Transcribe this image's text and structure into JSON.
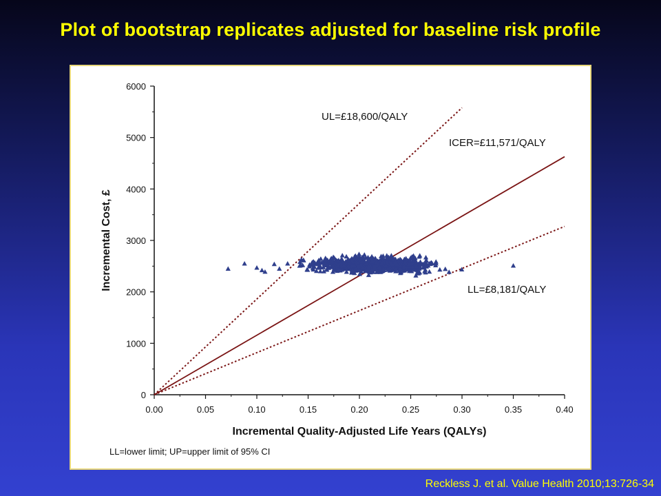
{
  "slide": {
    "title": "Plot of bootstrap replicates adjusted for baseline risk profile",
    "footnote": "LL=lower limit; UP=upper limit of 95% CI",
    "citation": "Reckless J. et al. Value Health 2010;13:726-34"
  },
  "colors": {
    "title": "#ffff00",
    "points": "#2f3f8c",
    "lines": "#7a1414"
  },
  "chart_data": {
    "type": "scatter",
    "xlabel": "Incremental Quality-Adjusted Life Years (QALYs)",
    "ylabel": "Incremental Cost, £",
    "xlim": [
      0,
      0.4
    ],
    "ylim": [
      0,
      6000
    ],
    "x_ticks": [
      "0.00",
      "0.05",
      "0.10",
      "0.15",
      "0.20",
      "0.25",
      "0.30",
      "0.35",
      "0.40"
    ],
    "y_ticks": [
      "0",
      "1000",
      "2000",
      "3000",
      "4000",
      "5000",
      "6000"
    ],
    "grid": false,
    "marker": "triangle",
    "point_cloud": {
      "x_range": [
        0.07,
        0.36
      ],
      "x_center": 0.215,
      "y_center": 2530,
      "y_range": [
        2200,
        2950
      ]
    },
    "lines": [
      {
        "label": "UL=£18,600/QALY",
        "slope": 18600,
        "x_end": 0.3,
        "style": "dotted"
      },
      {
        "label": "ICER=£11,571/QALY",
        "slope": 11571,
        "x_end": 0.4,
        "style": "solid"
      },
      {
        "label": "LL=£8,181/QALY",
        "slope": 8181,
        "x_end": 0.4,
        "style": "dotted"
      }
    ],
    "points": [
      [
        0.072,
        2450
      ],
      [
        0.088,
        2550
      ],
      [
        0.1,
        2470
      ],
      [
        0.105,
        2420
      ],
      [
        0.108,
        2390
      ],
      [
        0.117,
        2540
      ],
      [
        0.122,
        2450
      ],
      [
        0.13,
        2550
      ],
      [
        0.35,
        2510
      ]
    ]
  }
}
